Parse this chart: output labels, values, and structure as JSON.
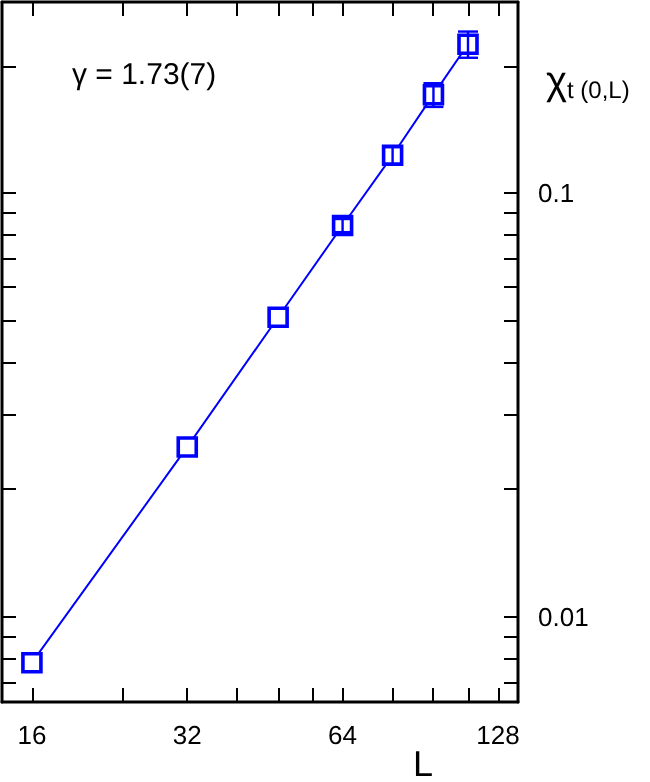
{
  "chart_data": {
    "type": "line",
    "xlabel": "L",
    "ylabel": "χ$_{t (0,L)}$",
    "annotations": [
      "γ = 1.73(7)"
    ],
    "x": [
      16,
      32,
      48,
      64,
      80,
      96,
      112
    ],
    "series": [
      {
        "color": "#0000ff",
        "values": [
          0.0078,
          0.0252,
          0.051,
          0.084,
          0.123,
          0.171,
          0.225
        ],
        "errors": [
          null,
          null,
          null,
          0.003,
          0.0055,
          0.011,
          0.016
        ]
      }
    ],
    "log": "xy",
    "xlim": [
      14,
      140
    ],
    "ylim": [
      0.0063,
      0.283
    ],
    "xticks": [
      16,
      {
        "value": 24,
        "label": null
      },
      32,
      {
        "value": 40,
        "label": null
      },
      {
        "value": 48,
        "label": null
      },
      {
        "value": 56,
        "label": null
      },
      64,
      {
        "value": 80,
        "label": null
      },
      {
        "value": 96,
        "label": null
      },
      {
        "value": 112,
        "label": null
      },
      128
    ],
    "yticks": [
      {
        "value": 0.007,
        "label": null
      },
      {
        "value": 0.008,
        "label": null
      },
      {
        "value": 0.009,
        "label": null
      },
      0.01,
      {
        "value": 0.02,
        "label": null
      },
      {
        "value": 0.03,
        "label": null
      },
      {
        "value": 0.04,
        "label": null
      },
      {
        "value": 0.05,
        "label": null
      },
      {
        "value": 0.06,
        "label": null
      },
      {
        "value": 0.07,
        "label": null
      },
      {
        "value": 0.08,
        "label": null
      },
      {
        "value": 0.09,
        "label": null
      },
      0.1,
      {
        "value": 0.2,
        "label": null
      }
    ],
    "marker": "square",
    "line_style": "solid"
  }
}
